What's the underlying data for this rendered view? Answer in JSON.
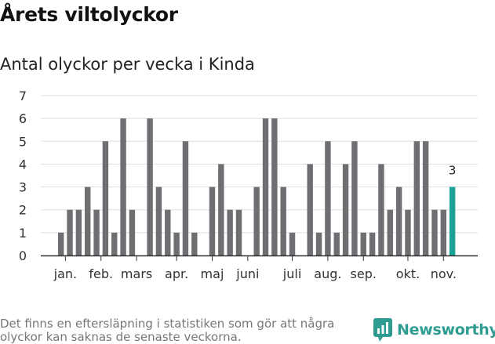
{
  "title": "Årets viltolyckor",
  "subtitle": "Antal olyckor per vecka i Kinda",
  "footnote": "Det finns en eftersläpning i statistiken som gör att några olyckor kan saknas de senaste veckorna.",
  "logo_text": "Newsworthy",
  "colors": {
    "bar": "#6f6e72",
    "highlight": "#1aa396",
    "grid": "#dddddd",
    "axis": "#333333",
    "logo": "#2f9c91"
  },
  "chart_data": {
    "type": "bar",
    "title": "Antal olyckor per vecka i Kinda",
    "xlabel": "",
    "ylabel": "",
    "ylim": [
      0,
      7
    ],
    "yticks": [
      0,
      1,
      2,
      3,
      4,
      5,
      6,
      7
    ],
    "grid": true,
    "values": [
      1,
      2,
      2,
      3,
      2,
      5,
      1,
      6,
      2,
      null,
      6,
      3,
      2,
      1,
      5,
      1,
      null,
      3,
      4,
      2,
      2,
      null,
      3,
      6,
      6,
      3,
      1,
      null,
      4,
      1,
      5,
      1,
      4,
      5,
      1,
      1,
      4,
      2,
      3,
      2,
      5,
      5,
      2,
      2,
      3
    ],
    "highlight_last": true,
    "data_labels": [
      {
        "index": 44,
        "text": "3"
      }
    ],
    "month_labels": [
      {
        "label": "jan.",
        "at": 0.5
      },
      {
        "label": "feb.",
        "at": 4.5
      },
      {
        "label": "mars",
        "at": 8.5
      },
      {
        "label": "apr.",
        "at": 13
      },
      {
        "label": "maj",
        "at": 17
      },
      {
        "label": "juni",
        "at": 21
      },
      {
        "label": "juli",
        "at": 26
      },
      {
        "label": "aug.",
        "at": 30
      },
      {
        "label": "sep.",
        "at": 34
      },
      {
        "label": "okt.",
        "at": 39
      },
      {
        "label": "nov.",
        "at": 43
      }
    ]
  }
}
